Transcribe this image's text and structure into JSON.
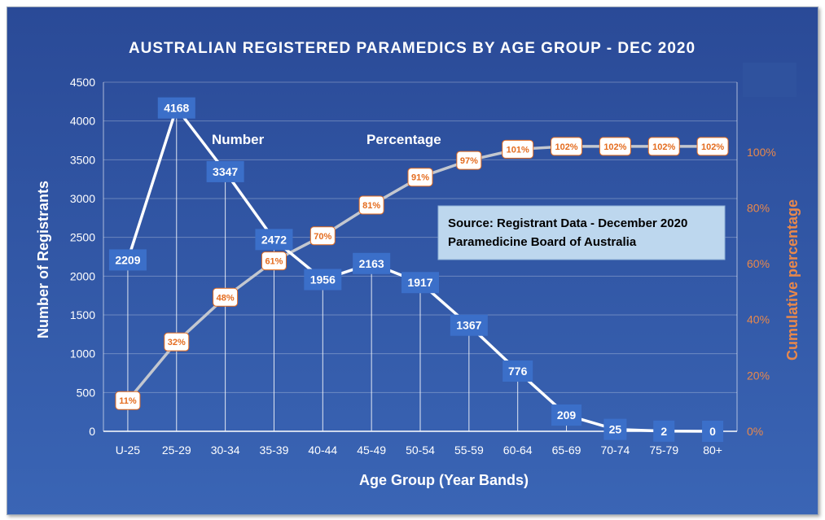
{
  "colors": {
    "background_top": "#2a4a97",
    "background_bottom": "#3a65b5",
    "number_line": "#ffffff",
    "number_label_bg": "#3b6fc9",
    "percentage_line": "#c3c7cf",
    "percentage_label_bg": "#ffffff",
    "percentage_text": "#e46c1f",
    "secondary_axis_text": "#e9884b",
    "source_box_bg": "#bdd7ee"
  },
  "chart_data": {
    "type": "line",
    "title": "AUSTRALIAN REGISTERED PARAMEDICS BY AGE GROUP - DEC 2020",
    "xlabel": "Age Group (Year Bands)",
    "ylabel": "Number of Registrants",
    "y2label": "Cumulative percentage",
    "categories": [
      "U-25",
      "25-29",
      "30-34",
      "35-39",
      "40-44",
      "45-49",
      "50-54",
      "55-59",
      "60-64",
      "65-69",
      "70-74",
      "75-79",
      "80+"
    ],
    "ylim": [
      0,
      4500
    ],
    "yticks": [
      "0",
      "500",
      "1000",
      "1500",
      "2000",
      "2500",
      "3000",
      "3500",
      "4000",
      "4500"
    ],
    "y2lim": [
      0,
      1.25
    ],
    "y2ticks": [
      "0%",
      "20%",
      "40%",
      "60%",
      "80%",
      "100%"
    ],
    "grid": true,
    "series": [
      {
        "name": "Number",
        "axis": "left",
        "values": [
          2209,
          4168,
          3347,
          2472,
          1956,
          2163,
          1917,
          1367,
          776,
          209,
          25,
          2,
          0
        ],
        "labels": [
          "2209",
          "4168",
          "3347",
          "2472",
          "1956",
          "2163",
          "1917",
          "1367",
          "776",
          "209",
          "25",
          "2",
          "0"
        ]
      },
      {
        "name": "Percentage",
        "axis": "right",
        "values": [
          0.11,
          0.32,
          0.48,
          0.61,
          0.7,
          0.81,
          0.91,
          0.97,
          1.01,
          1.02,
          1.02,
          1.02,
          1.02
        ],
        "labels": [
          "11%",
          "32%",
          "48%",
          "61%",
          "70%",
          "81%",
          "91%",
          "97%",
          "101%",
          "102%",
          "102%",
          "102%",
          "102%"
        ]
      }
    ],
    "annotations": {
      "source_line1": "Source: Registrant Data - December 2020",
      "source_line2": "Paramedicine Board of Australia"
    }
  }
}
